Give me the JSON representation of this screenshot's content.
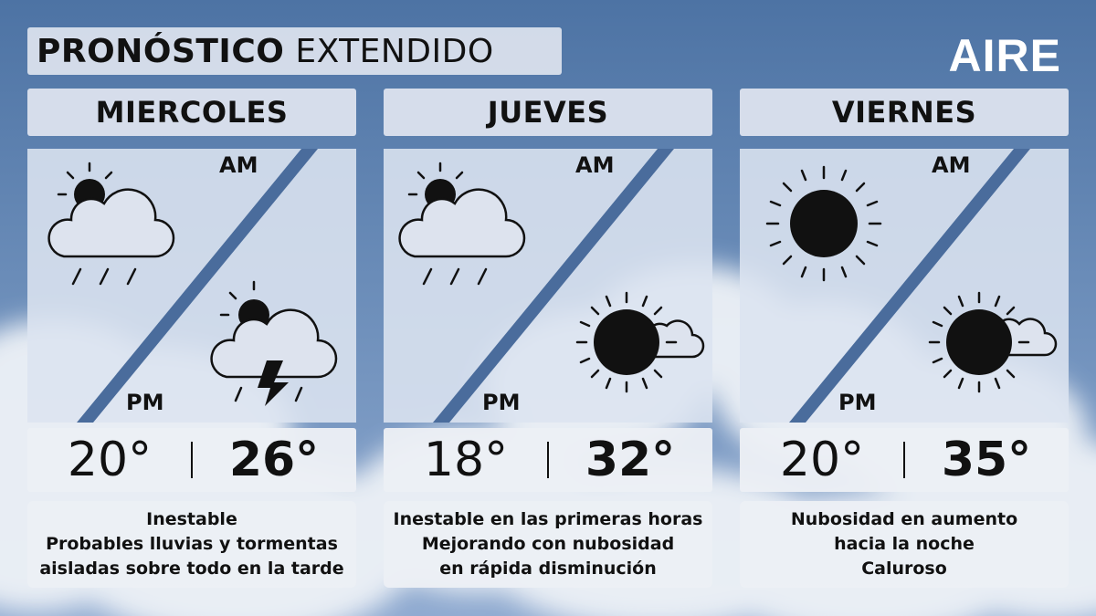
{
  "header": {
    "title_bold": "PRONÓSTICO",
    "title_rest": "EXTENDIDO",
    "logo": "AIRE"
  },
  "days": [
    {
      "name": "MIERCOLES",
      "am_label": "AM",
      "pm_label": "PM",
      "am_icon": "partly-cloudy-rain-icon",
      "pm_icon": "thunderstorm-icon",
      "min_temp": "20°",
      "max_temp": "26°",
      "lines": [
        "Inestable",
        "Probables lluvias y tormentas",
        "aisladas sobre todo en la tarde"
      ]
    },
    {
      "name": "JUEVES",
      "am_label": "AM",
      "pm_label": "PM",
      "am_icon": "partly-cloudy-rain-icon",
      "pm_icon": "mostly-sunny-icon",
      "min_temp": "18°",
      "max_temp": "32°",
      "lines": [
        "Inestable en las primeras horas",
        "Mejorando con nubosidad",
        "en rápida disminución"
      ]
    },
    {
      "name": "VIERNES",
      "am_label": "AM",
      "pm_label": "PM",
      "am_icon": "sunny-icon",
      "pm_icon": "mostly-sunny-icon",
      "min_temp": "20°",
      "max_temp": "35°",
      "lines": [
        "Nubosidad en aumento",
        "hacia la noche",
        "Caluroso"
      ]
    }
  ],
  "colors": {
    "sky_top": "#4d73a4",
    "sky_bottom": "#8faad0",
    "panel": "#dde3ee",
    "divider": "#4a6c9c"
  }
}
